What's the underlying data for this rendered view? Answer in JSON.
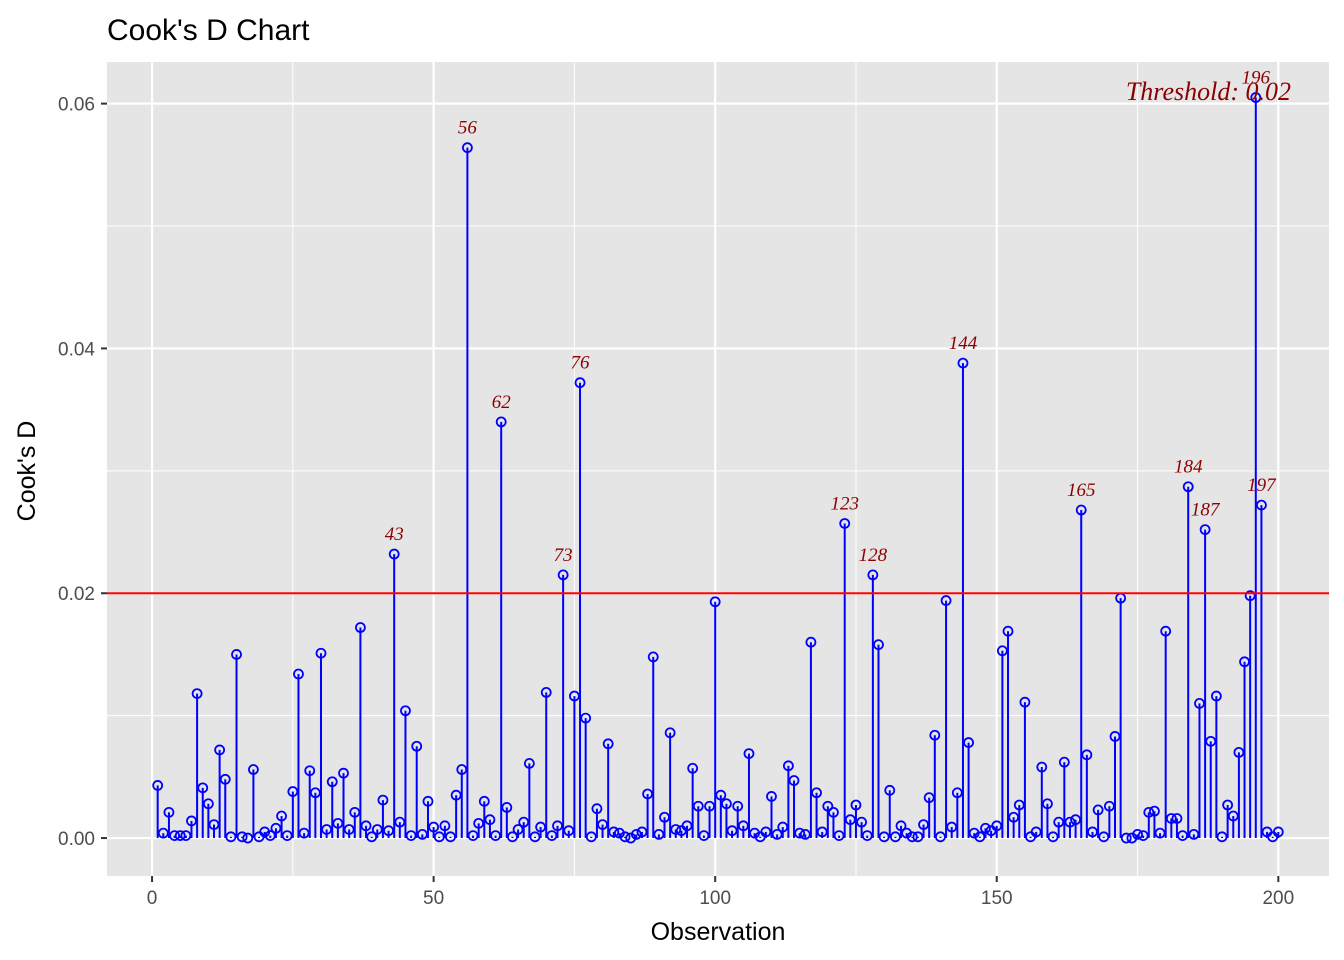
{
  "chart_data": {
    "type": "scatter",
    "title": "Cook's D Chart",
    "xlabel": "Observation",
    "ylabel": "Cook's D",
    "xlim": [
      -8,
      209
    ],
    "ylim": [
      -0.0031,
      0.0634
    ],
    "x_ticks": [
      0,
      50,
      100,
      150,
      200
    ],
    "x_tick_labels": [
      "0",
      "50",
      "100",
      "150",
      "200"
    ],
    "y_ticks": [
      0.0,
      0.02,
      0.04,
      0.06
    ],
    "y_tick_labels": [
      "0.00",
      "0.02",
      "0.04",
      "0.06"
    ],
    "grid": true,
    "threshold": 0.02,
    "threshold_label": "Threshold: 0.02",
    "colors": {
      "panel": "#e5e5e5",
      "grid": "#ffffff",
      "stem": "#0000ff",
      "point": "#0000ff",
      "threshold": "#ff0000",
      "annotation": "#8b0000"
    },
    "series": [
      {
        "x": [
          1,
          2,
          3,
          4,
          5,
          6,
          7,
          8,
          9,
          10,
          11,
          12,
          13,
          14,
          15,
          16,
          17,
          18,
          19,
          20,
          21,
          22,
          23,
          24,
          25,
          26,
          27,
          28,
          29,
          30,
          31,
          32,
          33,
          34,
          35,
          36,
          37,
          38,
          39,
          40,
          41,
          42,
          43,
          44,
          45,
          46,
          47,
          48,
          49,
          50,
          51,
          52,
          53,
          54,
          55,
          56,
          57,
          58,
          59,
          60,
          61,
          62,
          63,
          64,
          65,
          66,
          67,
          68,
          69,
          70,
          71,
          72,
          73,
          74,
          75,
          76,
          77,
          78,
          79,
          80,
          81,
          82,
          83,
          84,
          85,
          86,
          87,
          88,
          89,
          90,
          91,
          92,
          93,
          94,
          95,
          96,
          97,
          98,
          99,
          100,
          101,
          102,
          103,
          104,
          105,
          106,
          107,
          108,
          109,
          110,
          111,
          112,
          113,
          114,
          115,
          116,
          117,
          118,
          119,
          120,
          121,
          122,
          123,
          124,
          125,
          126,
          127,
          128,
          129,
          130,
          131,
          132,
          133,
          134,
          135,
          136,
          137,
          138,
          139,
          140,
          141,
          142,
          143,
          144,
          145,
          146,
          147,
          148,
          149,
          150,
          151,
          152,
          153,
          154,
          155,
          156,
          157,
          158,
          159,
          160,
          161,
          162,
          163,
          164,
          165,
          166,
          167,
          168,
          169,
          170,
          171,
          172,
          173,
          174,
          175,
          176,
          177,
          178,
          179,
          180,
          181,
          182,
          183,
          184,
          185,
          186,
          187,
          188,
          189,
          190,
          191,
          192,
          193,
          194,
          195,
          196,
          197,
          198,
          199,
          200
        ],
        "y": [
          0.0043,
          0.0004,
          0.0021,
          0.0002,
          0.0002,
          0.0002,
          0.0014,
          0.0118,
          0.0041,
          0.0028,
          0.0011,
          0.0072,
          0.0048,
          0.0001,
          0.015,
          0.0001,
          0.0,
          0.0056,
          0.0001,
          0.0005,
          0.0002,
          0.0008,
          0.0018,
          0.0002,
          0.0038,
          0.0134,
          0.0004,
          0.0055,
          0.0037,
          0.0151,
          0.0007,
          0.0046,
          0.0012,
          0.0053,
          0.0007,
          0.0021,
          0.0172,
          0.001,
          0.0001,
          0.0007,
          0.0031,
          0.0006,
          0.0232,
          0.0013,
          0.0104,
          0.0002,
          0.0075,
          0.0003,
          0.003,
          0.0009,
          0.0001,
          0.001,
          0.0001,
          0.0035,
          0.0056,
          0.0564,
          0.0002,
          0.0012,
          0.003,
          0.0015,
          0.0002,
          0.034,
          0.0025,
          0.0001,
          0.0007,
          0.0013,
          0.0061,
          0.0001,
          0.0009,
          0.0119,
          0.0002,
          0.001,
          0.0215,
          0.0006,
          0.0116,
          0.0372,
          0.0098,
          0.0001,
          0.0024,
          0.0011,
          0.0077,
          0.0005,
          0.0004,
          0.0001,
          0.0,
          0.0003,
          0.0005,
          0.0036,
          0.0148,
          0.0003,
          0.0017,
          0.0086,
          0.0007,
          0.0006,
          0.001,
          0.0057,
          0.0026,
          0.0002,
          0.0026,
          0.0193,
          0.0035,
          0.0028,
          0.0006,
          0.0026,
          0.001,
          0.0069,
          0.0004,
          0.0001,
          0.0005,
          0.0034,
          0.0003,
          0.0009,
          0.0059,
          0.0047,
          0.0004,
          0.0003,
          0.016,
          0.0037,
          0.0005,
          0.0026,
          0.0021,
          0.0002,
          0.0257,
          0.0015,
          0.0027,
          0.0013,
          0.0002,
          0.0215,
          0.0158,
          0.0001,
          0.0039,
          0.0001,
          0.001,
          0.0004,
          0.0001,
          0.0001,
          0.0011,
          0.0033,
          0.0084,
          0.0001,
          0.0194,
          0.0009,
          0.0037,
          0.0388,
          0.0078,
          0.0004,
          0.0001,
          0.0008,
          0.0006,
          0.001,
          0.0153,
          0.0169,
          0.0017,
          0.0027,
          0.0111,
          0.0001,
          0.0005,
          0.0058,
          0.0028,
          0.0001,
          0.0013,
          0.0062,
          0.0013,
          0.0015,
          0.0268,
          0.0068,
          0.0005,
          0.0023,
          0.0001,
          0.0026,
          0.0083,
          0.0196,
          0.0,
          0.0,
          0.0003,
          0.0002,
          0.0021,
          0.0022,
          0.0004,
          0.0169,
          0.0016,
          0.0016,
          0.0002,
          0.0287,
          0.0003,
          0.011,
          0.0252,
          0.0079,
          0.0116,
          0.0001,
          0.0027,
          0.0018,
          0.007,
          0.0144,
          0.0198,
          0.0605,
          0.0272,
          0.0005,
          0.0001,
          0.0005
        ]
      }
    ],
    "annotations": [
      {
        "label": "43",
        "x": 43,
        "y": 0.0232
      },
      {
        "label": "56",
        "x": 56,
        "y": 0.0564
      },
      {
        "label": "62",
        "x": 62,
        "y": 0.034
      },
      {
        "label": "73",
        "x": 73,
        "y": 0.0215
      },
      {
        "label": "76",
        "x": 76,
        "y": 0.0372
      },
      {
        "label": "123",
        "x": 123,
        "y": 0.0257
      },
      {
        "label": "128",
        "x": 128,
        "y": 0.0215
      },
      {
        "label": "144",
        "x": 144,
        "y": 0.0388
      },
      {
        "label": "165",
        "x": 165,
        "y": 0.0268
      },
      {
        "label": "184",
        "x": 184,
        "y": 0.0287
      },
      {
        "label": "187",
        "x": 187,
        "y": 0.0252
      },
      {
        "label": "196",
        "x": 196,
        "y": 0.0605
      },
      {
        "label": "197",
        "x": 197,
        "y": 0.0272
      }
    ]
  }
}
